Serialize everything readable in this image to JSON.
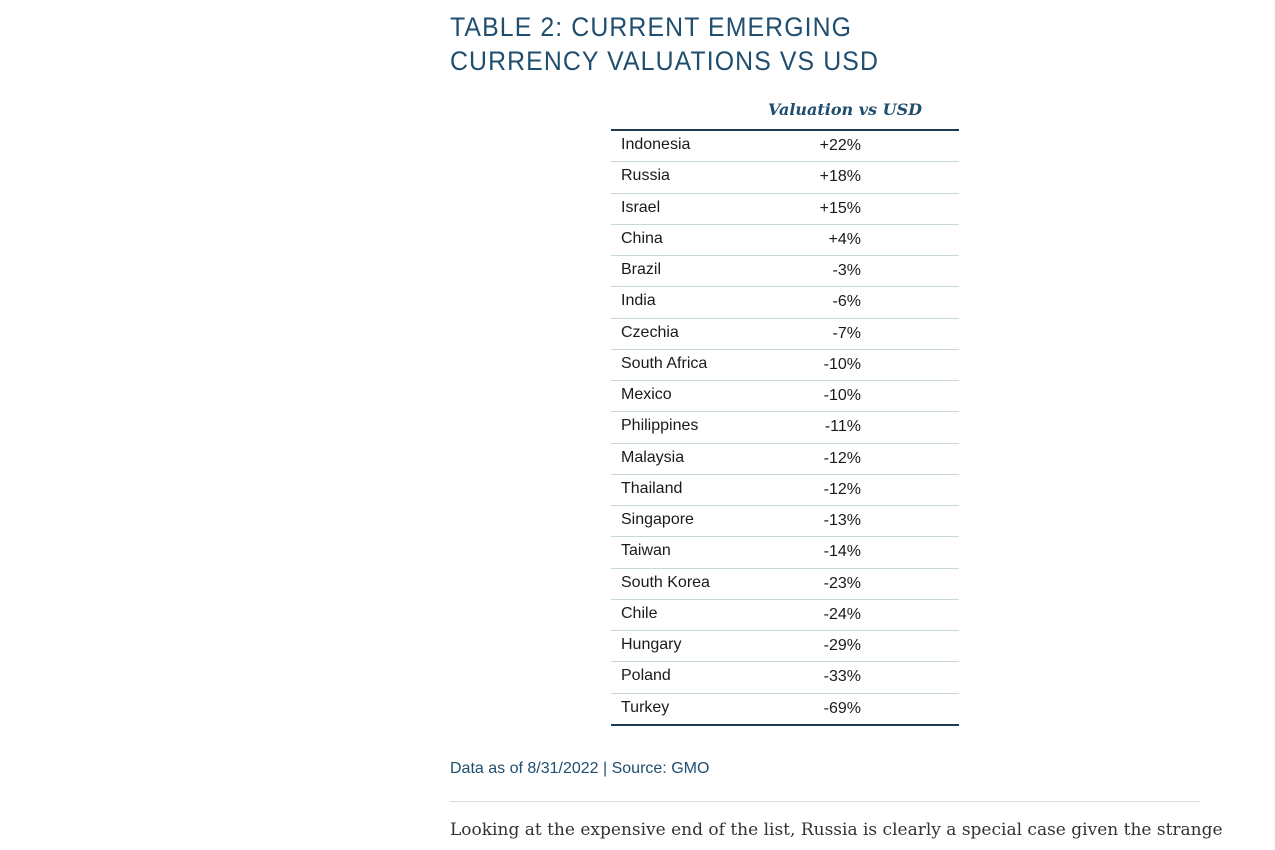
{
  "document": {
    "title": "TABLE 2: CURRENT EMERGING CURRENCY VALUATIONS VS USD",
    "table": {
      "column_header": "Valuation vs USD",
      "rows": [
        {
          "country": "Indonesia",
          "value": "+22%"
        },
        {
          "country": "Russia",
          "value": "+18%"
        },
        {
          "country": "Israel",
          "value": "+15%"
        },
        {
          "country": "China",
          "value": "+4%"
        },
        {
          "country": "Brazil",
          "value": "-3%"
        },
        {
          "country": "India",
          "value": "-6%"
        },
        {
          "country": "Czechia",
          "value": "-7%"
        },
        {
          "country": "South Africa",
          "value": "-10%"
        },
        {
          "country": "Mexico",
          "value": "-10%"
        },
        {
          "country": "Philippines",
          "value": "-11%"
        },
        {
          "country": "Malaysia",
          "value": "-12%"
        },
        {
          "country": "Thailand",
          "value": "-12%"
        },
        {
          "country": "Singapore",
          "value": "-13%"
        },
        {
          "country": "Taiwan",
          "value": "-14%"
        },
        {
          "country": "South Korea",
          "value": "-23%"
        },
        {
          "country": "Chile",
          "value": "-24%"
        },
        {
          "country": "Hungary",
          "value": "-29%"
        },
        {
          "country": "Poland",
          "value": "-33%"
        },
        {
          "country": "Turkey",
          "value": "-69%"
        }
      ]
    },
    "source": "Data as of 8/31/2022 | Source: GMO",
    "body_text": "Looking at the expensive end of the list, Russia is clearly a special case given the strange"
  },
  "colors": {
    "heading": "#1f4e6e",
    "text": "#1a1a1a",
    "rule": "#1f3a4f",
    "row_border": "#c8d6de"
  }
}
